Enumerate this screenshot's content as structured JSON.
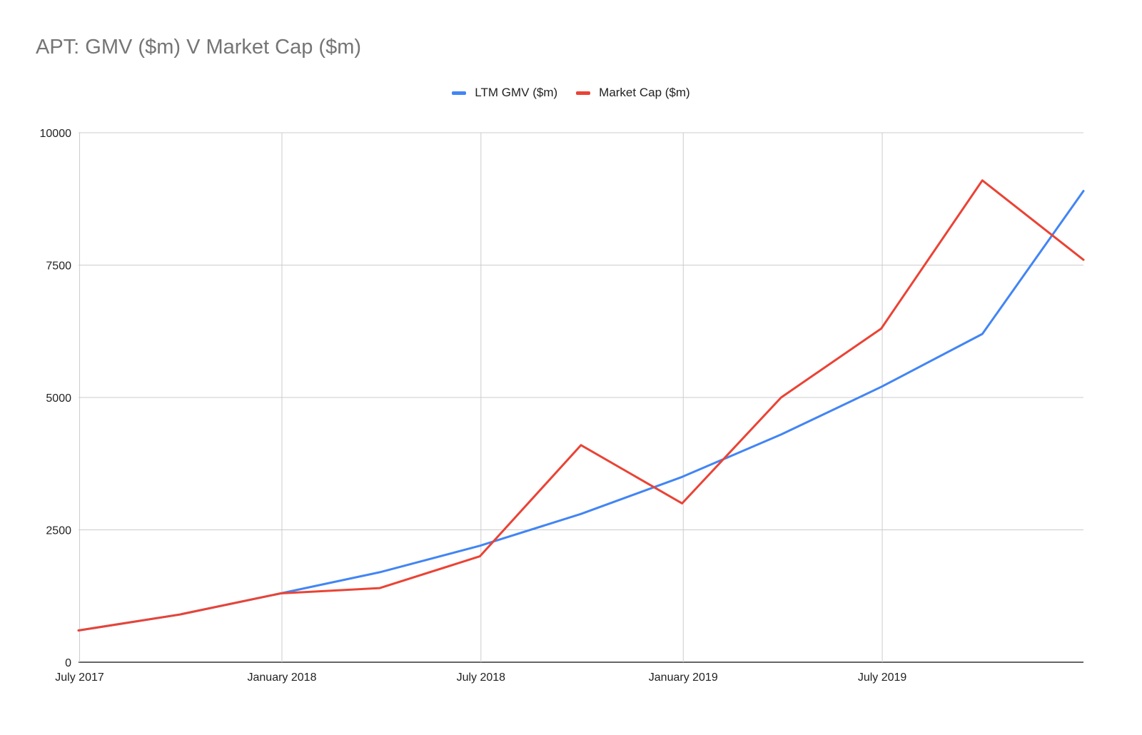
{
  "chart_data": {
    "type": "line",
    "title": "APT:  GMV ($m) V Market Cap ($m)",
    "xlabel": "",
    "ylabel": "",
    "ylim": [
      0,
      10000
    ],
    "y_ticks": [
      0,
      2500,
      5000,
      7500,
      10000
    ],
    "x_ticks": [
      {
        "date": "2017-07-01",
        "label": "July 2017"
      },
      {
        "date": "2018-01-01",
        "label": "January 2018"
      },
      {
        "date": "2018-07-01",
        "label": "July 2018"
      },
      {
        "date": "2019-01-01",
        "label": "January 2019"
      },
      {
        "date": "2019-07-01",
        "label": "July 2019"
      }
    ],
    "x": [
      "2017-06-30",
      "2017-09-30",
      "2017-12-31",
      "2018-03-31",
      "2018-06-30",
      "2018-09-30",
      "2018-12-31",
      "2019-03-31",
      "2019-06-30",
      "2019-09-30",
      "2019-12-31"
    ],
    "series": [
      {
        "name": "LTM GMV ($m)",
        "color": "#4285f4",
        "values": [
          600,
          900,
          1300,
          1700,
          2200,
          2800,
          3500,
          4300,
          5200,
          6200,
          8900
        ]
      },
      {
        "name": "Market Cap ($m)",
        "color": "#ea4335",
        "values": [
          600,
          900,
          1300,
          1400,
          2000,
          4100,
          3000,
          5000,
          6300,
          9100,
          7600
        ]
      }
    ],
    "grid": true,
    "legend_position": "top"
  }
}
